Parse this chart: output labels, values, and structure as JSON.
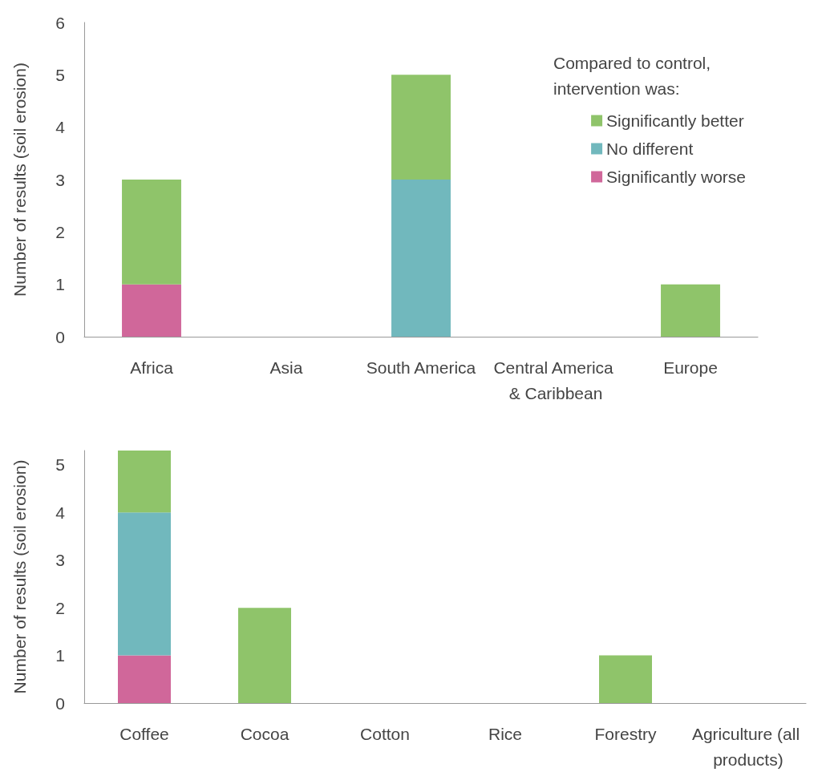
{
  "chart_data": [
    {
      "type": "bar",
      "stacked": true,
      "ylabel": "Number of results (soil erosion)",
      "legend_title": "Compared to control, intervention was:",
      "legend": "top right",
      "grid": false,
      "categories": [
        "Africa",
        "Asia",
        "South America",
        "Central America & Caribbean",
        "Europe"
      ],
      "series": [
        {
          "name": "Significantly worse",
          "color": "#d0679a",
          "values": [
            1,
            0,
            0,
            0,
            0
          ]
        },
        {
          "name": "No different",
          "color": "#71b8bd",
          "values": [
            0,
            0,
            3,
            0,
            0
          ]
        },
        {
          "name": "Significantly better",
          "color": "#8fc46a",
          "values": [
            2,
            0,
            2,
            0,
            1
          ]
        }
      ],
      "ylim": [
        0,
        6
      ],
      "yticks": [
        0,
        1,
        2,
        3,
        4,
        5,
        6
      ]
    },
    {
      "type": "bar",
      "stacked": true,
      "ylabel": "Number of results (soil erosion)",
      "legend": false,
      "grid": false,
      "categories": [
        "Coffee",
        "Cocoa",
        "Cotton",
        "Rice",
        "Forestry",
        "Agriculture (all products)"
      ],
      "series": [
        {
          "color": "#d0679a",
          "values": [
            1,
            0,
            0,
            0,
            0,
            0
          ]
        },
        {
          "color": "#71b8bd",
          "values": [
            3,
            0,
            0,
            0,
            0,
            0
          ]
        },
        {
          "color": "#8fc46a",
          "values": [
            1.3,
            2,
            0,
            0,
            1,
            0
          ]
        }
      ],
      "ylim": [
        0,
        5.3
      ],
      "yticks": [
        0,
        1,
        2,
        3,
        4,
        5
      ]
    }
  ]
}
